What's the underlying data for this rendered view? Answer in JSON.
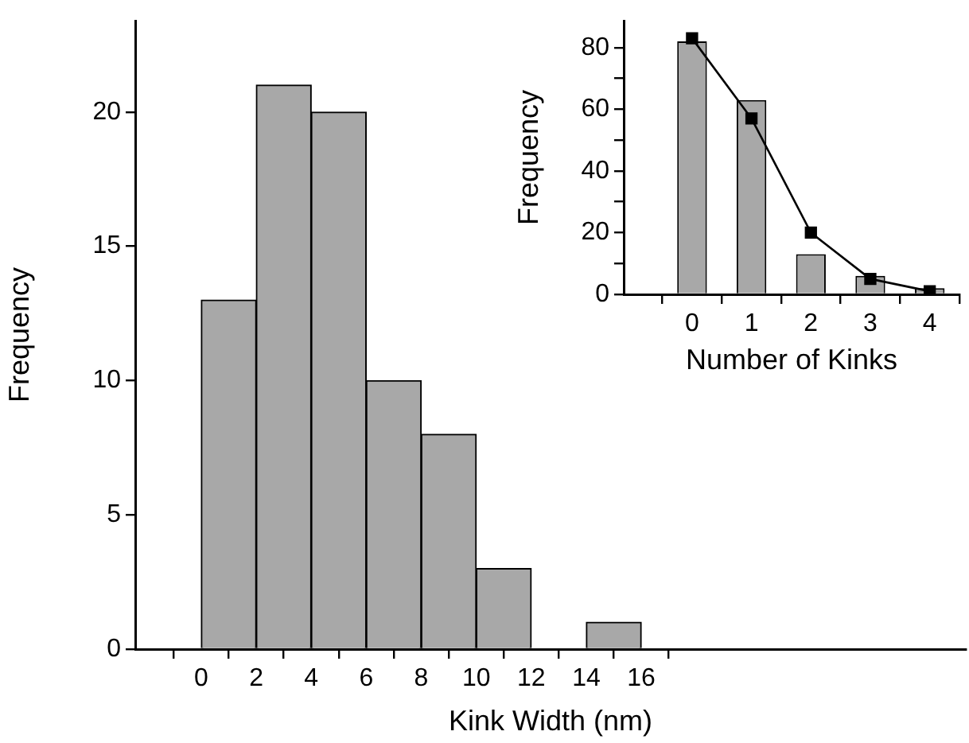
{
  "chart_data": [
    {
      "type": "histogram",
      "xlabel": "Kink Width (nm)",
      "ylabel": "Frequency",
      "bins": [
        0,
        2,
        4,
        6,
        8,
        10,
        12,
        14,
        16
      ],
      "values": [
        13,
        21,
        20,
        10,
        8,
        3,
        0,
        1
      ],
      "color": "#a8a8a8",
      "xlim": [
        -2.4,
        27.8
      ],
      "ylim": [
        0,
        23.4
      ],
      "xticks": [
        0,
        2,
        4,
        6,
        8,
        10,
        12,
        14,
        16
      ],
      "yticks": [
        0,
        5,
        10,
        15,
        20
      ]
    },
    {
      "type": "bar",
      "xlabel": "Number of Kinks",
      "ylabel": "Frequency",
      "x": [
        0,
        1,
        2,
        3,
        4
      ],
      "xlim": [
        -1.15,
        4.5
      ],
      "ylim": [
        0,
        88.7
      ],
      "xticks": [
        0,
        1,
        2,
        3,
        4
      ],
      "yticks": [
        0,
        {
          "value": 10,
          "label": null
        },
        20,
        {
          "value": 30,
          "label": null
        },
        40,
        {
          "value": 50,
          "label": null
        },
        60,
        {
          "value": 70,
          "label": null
        },
        80
      ],
      "marker": "square",
      "series": [
        {
          "type": "bar",
          "color": "#a8a8a8",
          "values": [
            82,
            63,
            13,
            6,
            2
          ]
        },
        {
          "type": "line",
          "color": "#000000",
          "values": [
            83,
            57,
            20,
            5,
            1
          ]
        }
      ]
    }
  ]
}
